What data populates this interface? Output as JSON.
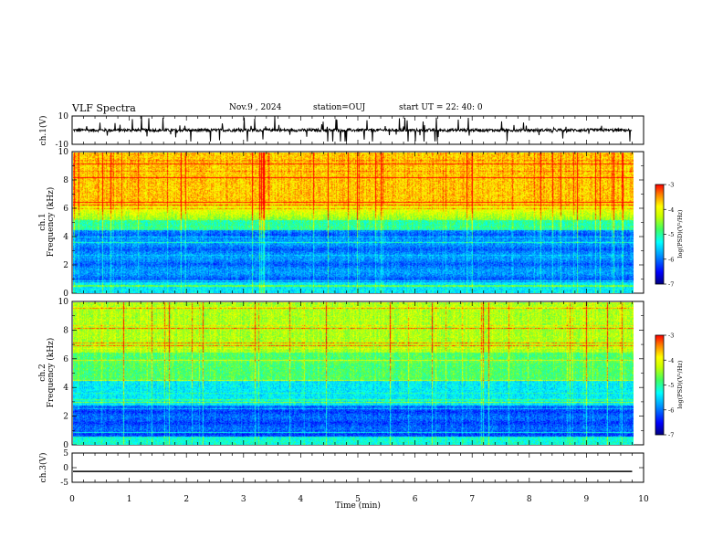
{
  "header": {
    "title": "VLF Spectra",
    "date": "Nov.9  , 2024",
    "station": "station=OUJ",
    "start": "start  UT  =   22: 40: 0"
  },
  "colors": {
    "trace": "#000000",
    "frame": "#000000"
  },
  "chart_data": [
    {
      "type": "line",
      "panel": "ch1-waveform",
      "ylabel": "ch.1(V)",
      "ylim": [
        -10,
        10
      ],
      "yticks": [
        "10",
        "-10"
      ],
      "xlim": [
        0,
        10
      ],
      "series": [
        {
          "name": "ch.1",
          "baseline": 0,
          "spike_max": 10,
          "spike_min": -8,
          "noise": 2,
          "end_min": 9.8
        }
      ]
    },
    {
      "type": "heatmap",
      "panel": "ch1-spectrogram",
      "ylabel": [
        "ch.1",
        "Frequency  (kHz)"
      ],
      "ylim": [
        0,
        10
      ],
      "yticks": [
        "0",
        "2",
        "4",
        "6",
        "8",
        "10"
      ],
      "xlim": [
        0,
        10
      ],
      "end_min": 9.8,
      "colorbar": {
        "label": "log(PSD)(V²/Hz)",
        "range": [
          -7,
          -3
        ],
        "ticks": [
          "-3",
          "-4",
          "-5",
          "-6",
          "-7"
        ]
      }
    },
    {
      "type": "heatmap",
      "panel": "ch2-spectrogram",
      "ylabel": [
        "ch.2",
        "Frequency  (kHz)"
      ],
      "ylim": [
        0,
        10
      ],
      "yticks": [
        "0",
        "2",
        "4",
        "6",
        "8",
        "10"
      ],
      "xlim": [
        0,
        10
      ],
      "end_min": 9.8,
      "colorbar": {
        "label": "log(PSD)(V²/Hz)",
        "range": [
          -7,
          -3
        ],
        "ticks": [
          "-3",
          "-4",
          "-5",
          "-6",
          "-7"
        ]
      }
    },
    {
      "type": "line",
      "panel": "ch3-waveform",
      "ylabel": "ch.3(V)",
      "ylim": [
        -5,
        5
      ],
      "yticks": [
        "5",
        "0",
        "-5"
      ],
      "xlim": [
        0,
        10
      ],
      "series": [
        {
          "name": "ch.3",
          "value": -1.3,
          "end_min": 9.8
        }
      ]
    }
  ],
  "xaxis": {
    "label": "Time  (min)",
    "ticks": [
      "0",
      "1",
      "2",
      "3",
      "4",
      "5",
      "6",
      "7",
      "8",
      "9",
      "10"
    ]
  }
}
